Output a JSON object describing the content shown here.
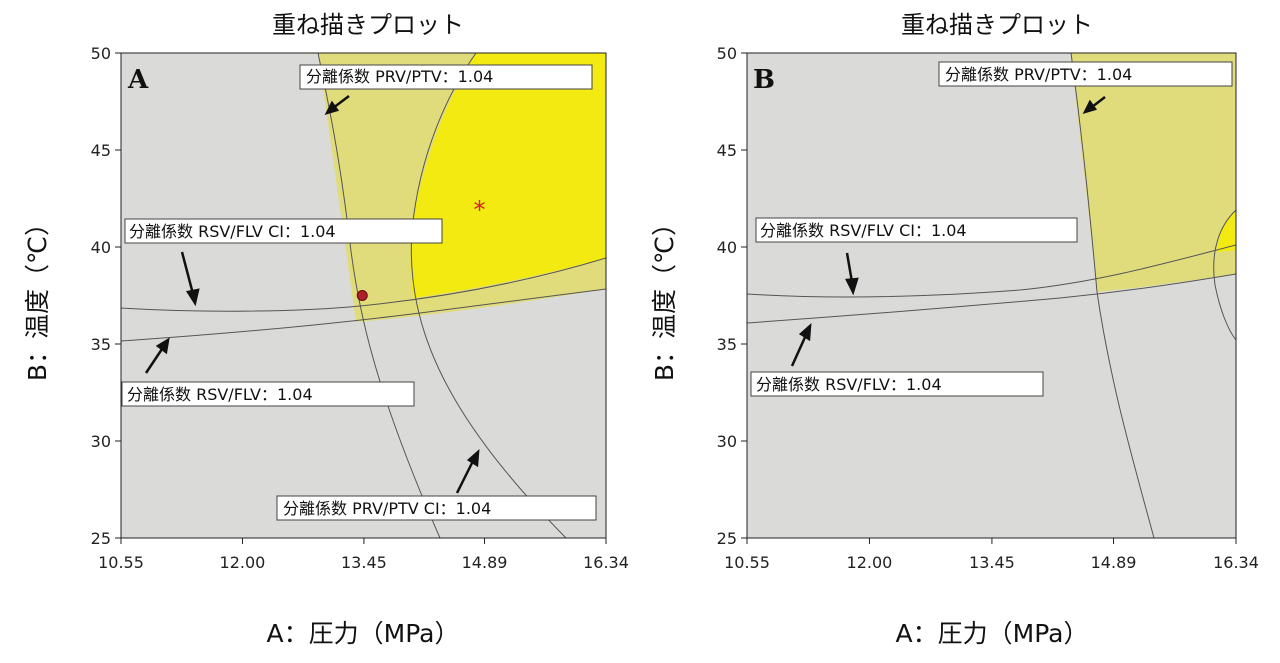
{
  "chart_data": [
    {
      "type": "contour-overlay",
      "panel_label": "A",
      "title": "重ね描きプロット",
      "xlabel": "A：圧力（MPa）",
      "ylabel": "B：温度（℃）",
      "xlim": [
        10.55,
        16.34
      ],
      "ylim": [
        25,
        50
      ],
      "xticks": [
        "10.55",
        "12.00",
        "13.45",
        "14.89",
        "16.34"
      ],
      "yticks": [
        "25",
        "30",
        "35",
        "40",
        "45",
        "50"
      ],
      "colors": {
        "plot_bg": "#dadbd9",
        "sweet_spot": "#f2ea10",
        "partial": "#e0dc7c",
        "line": "#555555"
      },
      "contours": [
        {
          "name": "分離係数 PRV/PTV：1.04",
          "points": [
            [
              12.85,
              50
            ],
            [
              13.05,
              45
            ],
            [
              13.3,
              40
            ],
            [
              13.45,
              37.5
            ],
            [
              13.95,
              30
            ],
            [
              14.35,
              25
            ]
          ]
        },
        {
          "name": "分離係数 PRV/PTV CI：1.04",
          "points": [
            [
              15.45,
              50
            ],
            [
              14.7,
              45
            ],
            [
              14.45,
              40
            ],
            [
              14.65,
              35
            ],
            [
              15.3,
              30
            ],
            [
              15.85,
              25
            ]
          ]
        },
        {
          "name": "分離係数 RSV/FLV CI：1.04",
          "points": [
            [
              10.55,
              36.7
            ],
            [
              11.8,
              36.6
            ],
            [
              13.0,
              36.8
            ],
            [
              14.5,
              37.5
            ],
            [
              16.34,
              39.4
            ]
          ]
        },
        {
          "name": "分離係数 RSV/FLV：1.04",
          "points": [
            [
              10.55,
              35.1
            ],
            [
              12.0,
              35.6
            ],
            [
              13.45,
              36.2
            ],
            [
              14.89,
              36.9
            ],
            [
              16.34,
              37.8
            ]
          ]
        }
      ],
      "annotations": [
        {
          "text": "分離係数 PRV/PTV：1.04"
        },
        {
          "text": "分離係数 RSV/FLV CI：1.04"
        },
        {
          "text": "分離係数 RSV/FLV：1.04"
        },
        {
          "text": "分離係数 PRV/PTV CI：1.04"
        }
      ],
      "markers": [
        {
          "symbol": "asterisk",
          "x": 14.83,
          "y": 42.0,
          "color": "#d02020"
        },
        {
          "symbol": "dot",
          "x": 13.43,
          "y": 37.5,
          "color": "#b0202a"
        }
      ]
    },
    {
      "type": "contour-overlay",
      "panel_label": "B",
      "title": "重ね描きプロット",
      "xlabel": "A：圧力（MPa）",
      "ylabel": "B：温度（℃）",
      "xlim": [
        10.55,
        16.34
      ],
      "ylim": [
        25,
        50
      ],
      "xticks": [
        "10.55",
        "12.00",
        "13.45",
        "14.89",
        "16.34"
      ],
      "yticks": [
        "25",
        "30",
        "35",
        "40",
        "45",
        "50"
      ],
      "colors": {
        "plot_bg": "#dadbd9",
        "sweet_spot": "#f2ea10",
        "partial": "#e0dc7c",
        "line": "#555555"
      },
      "contours": [
        {
          "name": "分離係数 PRV/PTV：1.04",
          "points": [
            [
              14.3,
              50
            ],
            [
              14.45,
              45
            ],
            [
              14.6,
              40
            ],
            [
              14.7,
              37.5
            ],
            [
              15.0,
              30
            ],
            [
              15.25,
              25
            ]
          ]
        },
        {
          "name": "分離係数 RSV/FLV CI：1.04",
          "points": [
            [
              10.55,
              37.6
            ],
            [
              11.8,
              37.4
            ],
            [
              13.45,
              37.8
            ],
            [
              14.89,
              38.6
            ],
            [
              16.34,
              40.0
            ]
          ]
        },
        {
          "name": "分離係数 RSV/FLV：1.04",
          "points": [
            [
              10.55,
              36.0
            ],
            [
              12.0,
              36.5
            ],
            [
              13.45,
              37.0
            ],
            [
              14.89,
              37.7
            ],
            [
              16.34,
              38.6
            ]
          ]
        }
      ],
      "annotations": [
        {
          "text": "分離係数 PRV/PTV：1.04"
        },
        {
          "text": "分離係数 RSV/FLV CI：1.04"
        },
        {
          "text": "分離係数 RSV/FLV：1.04"
        }
      ],
      "markers": []
    }
  ]
}
